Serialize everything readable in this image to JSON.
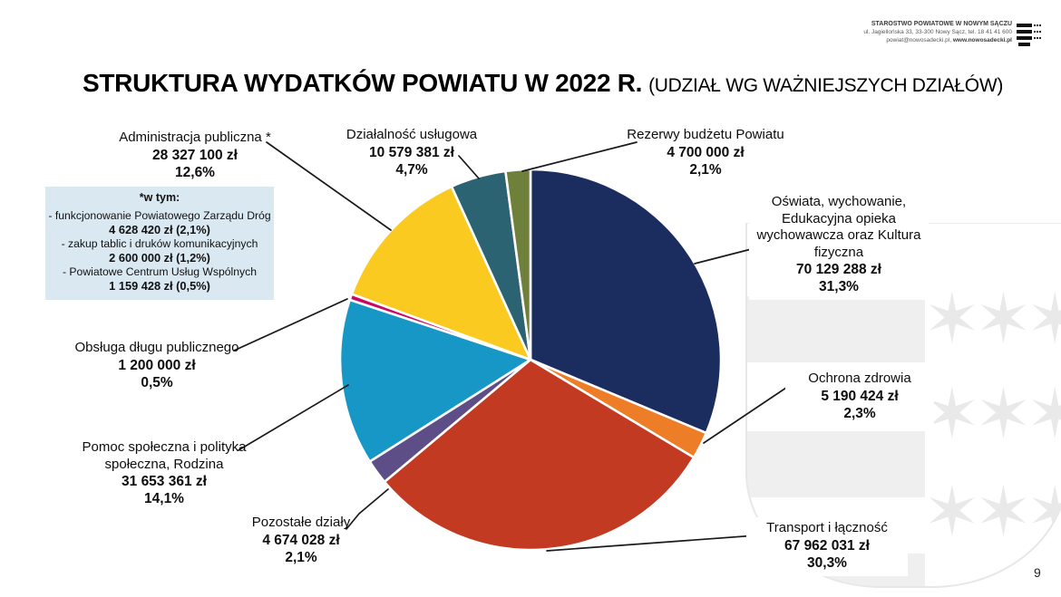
{
  "slide": {
    "title_main": "STRUKTURA WYDATKÓW POWIATU W 2022 R.",
    "title_sub": "(UDZIAŁ WG WAŻNIEJSZYCH DZIAŁÓW)",
    "page_number": "9"
  },
  "header": {
    "org_name": "STAROSTWO POWIATOWE W NOWYM SĄCZU",
    "address": "ul. Jagiellońska 33, 33-300 Nowy Sącz, tel. 18 41 41 600",
    "contact_plain": "powiat@nowosadecki.pl, ",
    "contact_bold": "www.nowosadecki.pl"
  },
  "footnote": {
    "heading": "*w tym:",
    "background_color": "#DAE9F1",
    "items": [
      {
        "name": "- funkcjonowanie Powiatowego Zarządu Dróg",
        "value": "4 628 420 zł (2,1%)"
      },
      {
        "name": "- zakup tablic i druków komunikacyjnych",
        "value": "2 600 000 zł (1,2%)"
      },
      {
        "name": "- Powiatowe Centrum Usług Wspólnych",
        "value": "1 159 428 zł (0,5%)"
      }
    ]
  },
  "chart_data": {
    "type": "pie",
    "title": "STRUKTURA WYDATKÓW POWIATU W 2022 R. (UDZIAŁ WG WAŻNIEJSZYCH DZIAŁÓW)",
    "units": "zł",
    "start_angle_deg": 0,
    "direction": "clockwise",
    "slice_gap_color": "#ffffff",
    "slices": [
      {
        "label": "Oświata, wychowanie, Edukacyjna opieka wychowawcza oraz Kultura fizyczna",
        "amount": "70 129 288 zł",
        "percent": "31,3%",
        "value": 31.3,
        "color": "#1B2D5F"
      },
      {
        "label": "Ochrona zdrowia",
        "amount": "5 190 424 zł",
        "percent": "2,3%",
        "value": 2.3,
        "color": "#EE7D28"
      },
      {
        "label": "Transport i łączność",
        "amount": "67 962 031 zł",
        "percent": "30,3%",
        "value": 30.3,
        "color": "#C23A22"
      },
      {
        "label": "Pozostałe działy",
        "amount": "4 674 028 zł",
        "percent": "2,1%",
        "value": 2.1,
        "color": "#5D4E87"
      },
      {
        "label": "Pomoc społeczna i polityka społeczna, Rodzina",
        "amount": "31 653 361 zł",
        "percent": "14,1%",
        "value": 14.1,
        "color": "#1697C6"
      },
      {
        "label": "Obsługa długu publicznego",
        "amount": "1 200 000 zł",
        "percent": "0,5%",
        "value": 0.5,
        "color": "#C60A63"
      },
      {
        "label": "Administracja publiczna *",
        "amount": "28 327 100 zł",
        "percent": "12,6%",
        "value": 12.6,
        "color": "#FBCA20"
      },
      {
        "label": "Działalność usługowa",
        "amount": "10 579 381 zł",
        "percent": "4,7%",
        "value": 4.7,
        "color": "#2B6372"
      },
      {
        "label": "Rezerwy budżetu Powiatu",
        "amount": "4 700 000 zł",
        "percent": "2,1%",
        "value": 2.1,
        "color": "#6E8039"
      }
    ]
  }
}
